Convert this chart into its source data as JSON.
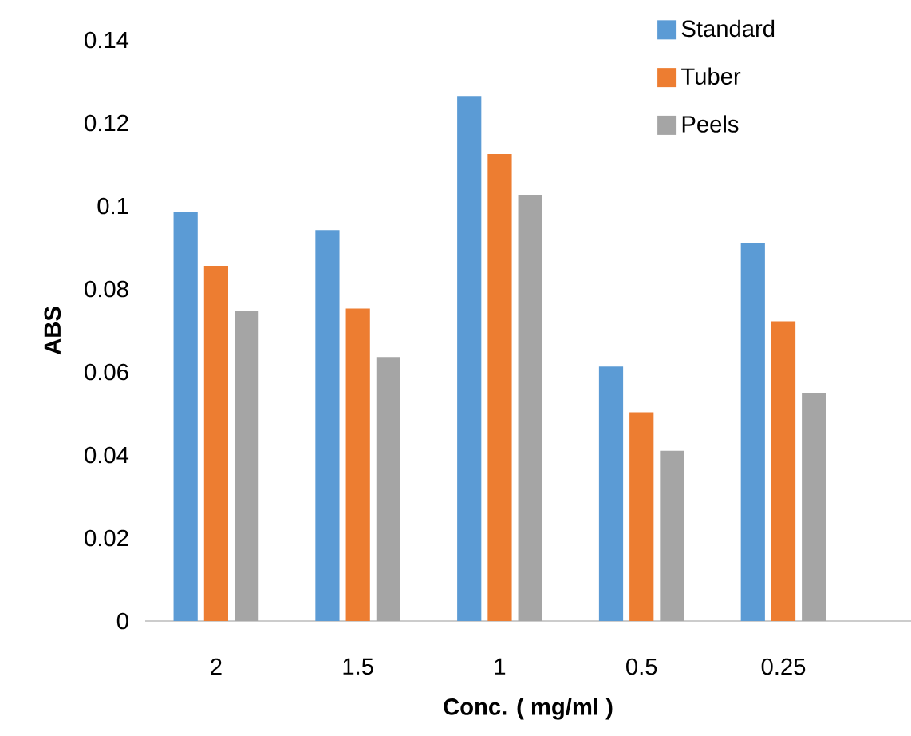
{
  "chart_data": {
    "type": "bar",
    "xlabel": "Conc. ( mg/ml )",
    "ylabel": "ABS",
    "categories": [
      "2",
      "1.5",
      "1",
      "0.5",
      "0.25"
    ],
    "series": [
      {
        "name": "Standard",
        "color": "#5b9bd5",
        "values": [
          0.0985,
          0.0942,
          0.1265,
          0.0613,
          0.091
        ]
      },
      {
        "name": "Tuber",
        "color": "#ed7d31",
        "values": [
          0.0856,
          0.0753,
          0.1125,
          0.0503,
          0.0722
        ]
      },
      {
        "name": "Peels",
        "color": "#a5a5a5",
        "values": [
          0.0746,
          0.0636,
          0.1027,
          0.041,
          0.055
        ]
      }
    ],
    "ylim": [
      0,
      0.14
    ],
    "yticks": [
      0,
      0.02,
      0.04,
      0.06,
      0.08,
      0.1,
      0.12,
      0.14
    ],
    "legend": "top right",
    "grid": false
  }
}
